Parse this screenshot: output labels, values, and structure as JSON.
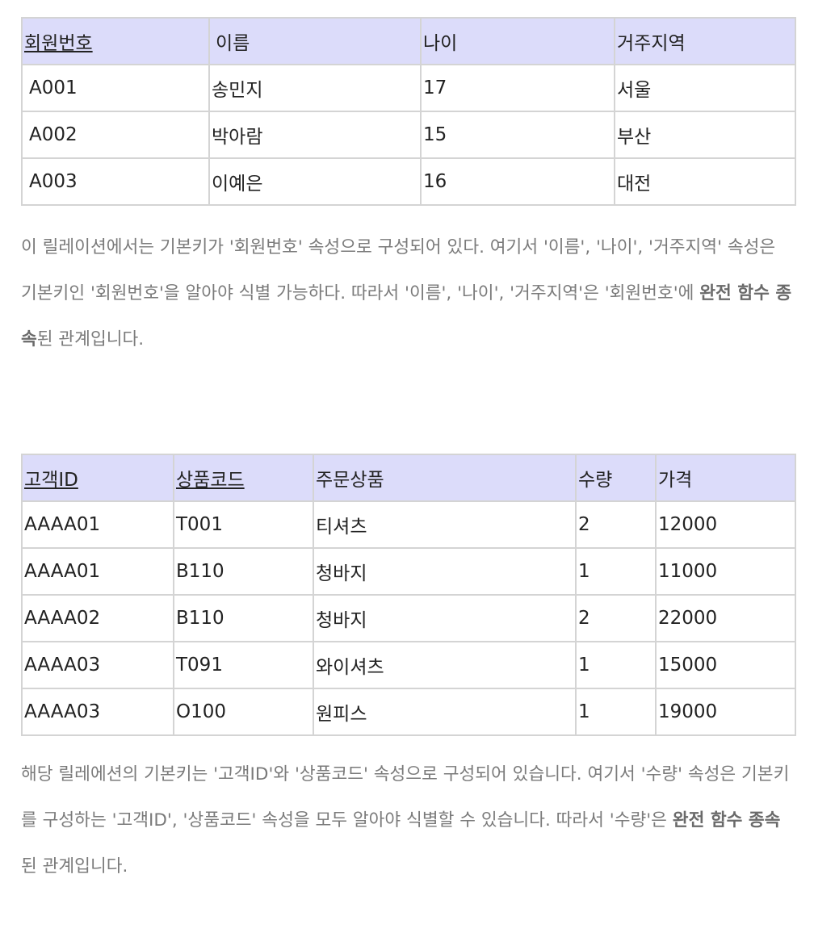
{
  "members_table": {
    "headers": [
      "회원번호",
      "이름",
      "나이",
      "거주지역"
    ],
    "rows": [
      [
        "A001",
        "송민지",
        "17",
        "서울"
      ],
      [
        "A002",
        "박아람",
        "15",
        "부산"
      ],
      [
        "A003",
        "이예은",
        "16",
        "대전"
      ]
    ]
  },
  "paragraph1": {
    "text": "이 릴레이션에서는 기본키가 '회원번호' 속성으로 구성되어 있다. 여기서 '이름', '나이', '거주지역' 속성은 기본키인 '회원번호'을 알아야 식별 가능하다. 따라서 '이름', '나이', '거주지역'은 '회원번호'에 ",
    "bold": "완전 함수 종속",
    "tail": "된 관계입니다."
  },
  "orders_table": {
    "headers": [
      "고객ID ",
      "상품코드",
      "주문상품",
      "수량",
      "가격"
    ],
    "rows": [
      [
        "AAAA01",
        "T001",
        "티셔츠",
        "2",
        "12000"
      ],
      [
        "AAAA01",
        "B110",
        "청바지",
        "1",
        "11000"
      ],
      [
        "AAAA02",
        "B110",
        "청바지",
        "2",
        "22000"
      ],
      [
        "AAAA03",
        "T091",
        "와이셔츠",
        "1",
        "15000"
      ],
      [
        "AAAA03",
        "O100",
        "원피스",
        "1",
        "19000"
      ]
    ]
  },
  "paragraph2": {
    "text": "해당 릴레에션의 기본키는 '고객ID'와 '상품코드' 속성으로 구성되어 있습니다. 여기서 '수량' 속성은 기본키를 구성하는 '고객ID', '상품코드' 속성을 모두 알아야 식별할 수 있습니다. 따라서 '수량'은 ",
    "bold": "완전 함수 종속",
    "tail": "된 관계입니다."
  }
}
